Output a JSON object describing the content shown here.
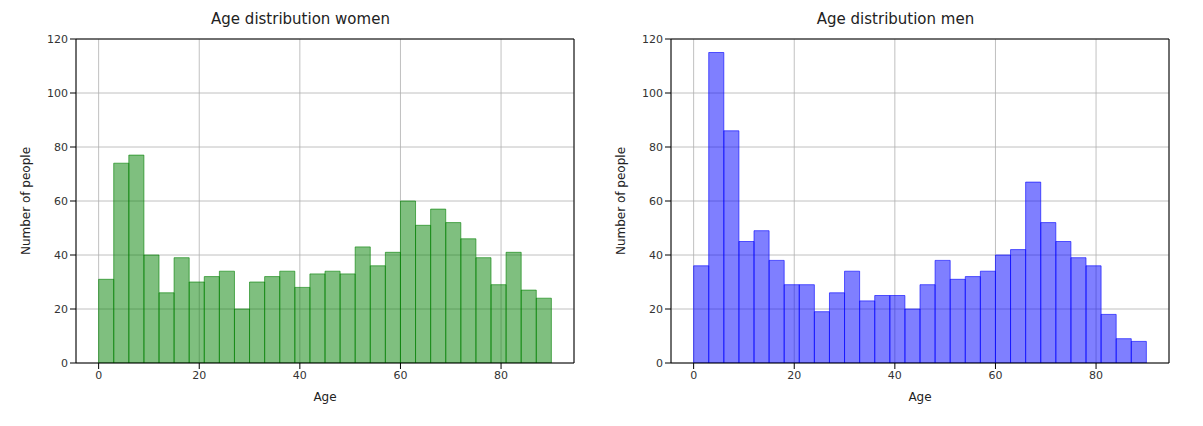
{
  "chart_data": [
    {
      "type": "histogram",
      "title": "Age distribution women",
      "x_label": "Age",
      "y_label": "Number of people",
      "bins": [
        0,
        3,
        6,
        9,
        12,
        15,
        18,
        21,
        24,
        27,
        30,
        33,
        36,
        39,
        42,
        45,
        48,
        51,
        54,
        57,
        60,
        63,
        66,
        69,
        72,
        75,
        78,
        81,
        84,
        87,
        90
      ],
      "values": [
        31,
        74,
        77,
        40,
        26,
        39,
        30,
        32,
        34,
        20,
        30,
        32,
        34,
        28,
        33,
        34,
        33,
        43,
        36,
        41,
        60,
        51,
        57,
        52,
        46,
        39,
        29,
        41,
        27,
        24
      ],
      "color": "#008000",
      "xlim": [
        -4.5,
        94.5
      ],
      "ylim": [
        0,
        120
      ],
      "xticks": [
        0,
        20,
        40,
        60,
        80
      ],
      "yticks": [
        0,
        20,
        40,
        60,
        80,
        100,
        120
      ],
      "grid": true
    },
    {
      "type": "histogram",
      "title": "Age distribution men",
      "x_label": "Age",
      "y_label": "Number of people",
      "bins": [
        0,
        3,
        6,
        9,
        12,
        15,
        18,
        21,
        24,
        27,
        30,
        33,
        36,
        39,
        42,
        45,
        48,
        51,
        54,
        57,
        60,
        63,
        66,
        69,
        72,
        75,
        78,
        81,
        84,
        87,
        90
      ],
      "values": [
        36,
        115,
        86,
        45,
        49,
        38,
        29,
        29,
        19,
        26,
        34,
        23,
        25,
        25,
        20,
        29,
        38,
        31,
        32,
        34,
        40,
        42,
        67,
        52,
        45,
        39,
        36,
        18,
        9,
        8
      ],
      "color": "#0000ff",
      "xlim": [
        -4.5,
        94.5
      ],
      "ylim": [
        0,
        120
      ],
      "xticks": [
        0,
        20,
        40,
        60,
        80
      ],
      "yticks": [
        0,
        20,
        40,
        60,
        80,
        100,
        120
      ],
      "grid": true
    }
  ]
}
